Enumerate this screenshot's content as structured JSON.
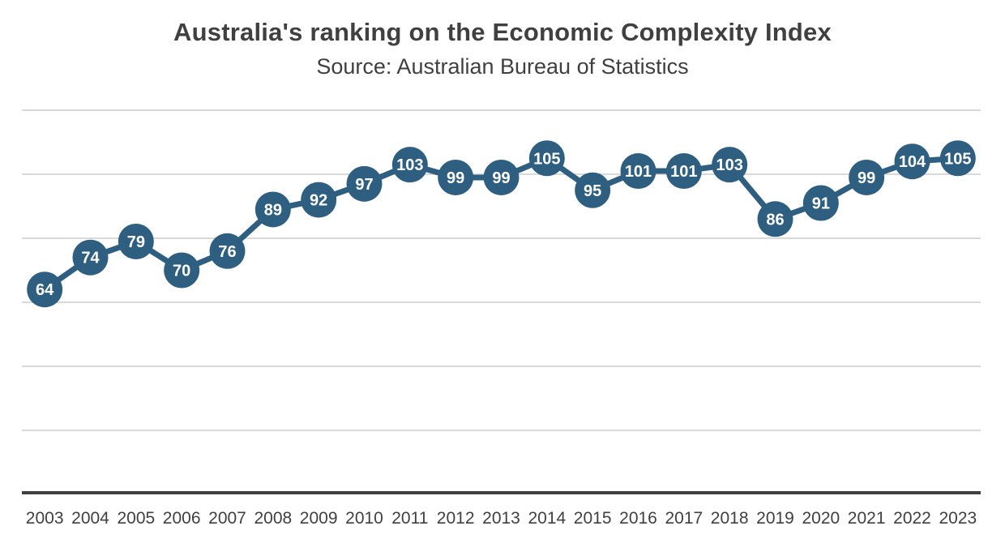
{
  "chart_data": {
    "type": "line",
    "title": "Australia's ranking on the Economic Complexity Index",
    "subtitle": "Source: Australian Bureau of Statistics",
    "xlabel": "",
    "ylabel": "",
    "categories": [
      "2003",
      "2004",
      "2005",
      "2006",
      "2007",
      "2008",
      "2009",
      "2010",
      "2011",
      "2012",
      "2013",
      "2014",
      "2015",
      "2016",
      "2017",
      "2018",
      "2019",
      "2020",
      "2021",
      "2022",
      "2023"
    ],
    "series": [
      {
        "name": "Ranking",
        "values": [
          64,
          74,
          79,
          70,
          76,
          89,
          92,
          97,
          103,
          99,
          99,
          105,
          95,
          101,
          101,
          103,
          86,
          91,
          99,
          104,
          105
        ],
        "color": "#2e5f80"
      }
    ],
    "ylim": [
      0,
      120
    ],
    "yticks": [
      0,
      20,
      40,
      60,
      80,
      100,
      120
    ],
    "grid": true,
    "y_tick_labels_visible": false,
    "data_labels": true,
    "legend": "none"
  }
}
